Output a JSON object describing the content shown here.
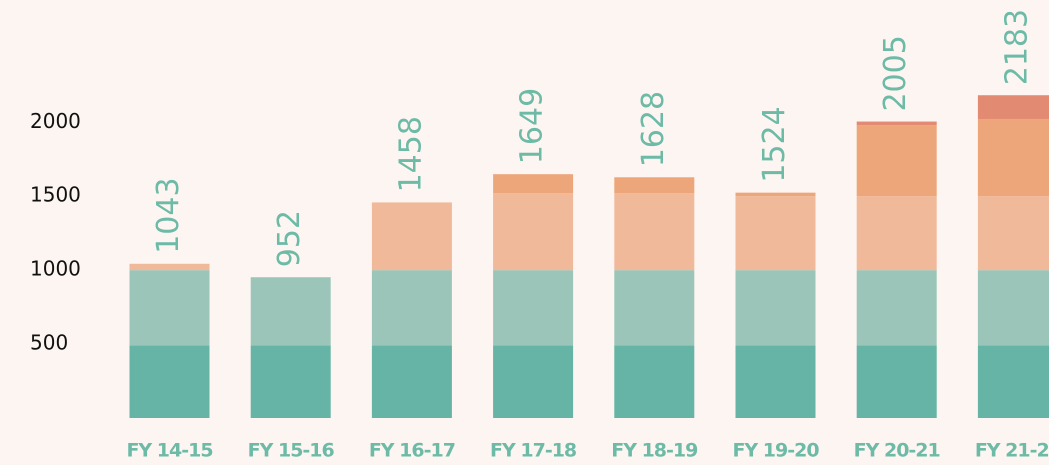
{
  "chart_data": {
    "type": "stacked_bar",
    "categories": [
      "FY 14-15",
      "FY 15-16",
      "FY 16-17",
      "FY 17-18",
      "FY 18-19",
      "FY 19-20",
      "FY 20-21",
      "FY 21-22"
    ],
    "series": [
      {
        "color": "#65b4a5",
        "values": [
          490,
          490,
          490,
          490,
          490,
          490,
          490,
          490
        ]
      },
      {
        "color": "#9cc5ba",
        "values": [
          510,
          462,
          510,
          510,
          510,
          510,
          510,
          510
        ]
      },
      {
        "color": "#f0b99a",
        "values": [
          43,
          null,
          458,
          520,
          520,
          500,
          500,
          500
        ]
      },
      {
        "color": "#eca67a",
        "values": [
          null,
          null,
          null,
          129,
          108,
          24,
          480,
          520
        ]
      },
      {
        "color": "#e38a72",
        "values": [
          null,
          null,
          null,
          null,
          null,
          null,
          25,
          163
        ]
      }
    ],
    "totals": [
      1043,
      952,
      1458,
      1649,
      1628,
      1524,
      2005,
      2183
    ],
    "label_color": "#6dbaa7",
    "ylim": [
      0,
      2800
    ],
    "yticks": [
      500,
      1000,
      1500,
      2000
    ],
    "grid": false
  }
}
